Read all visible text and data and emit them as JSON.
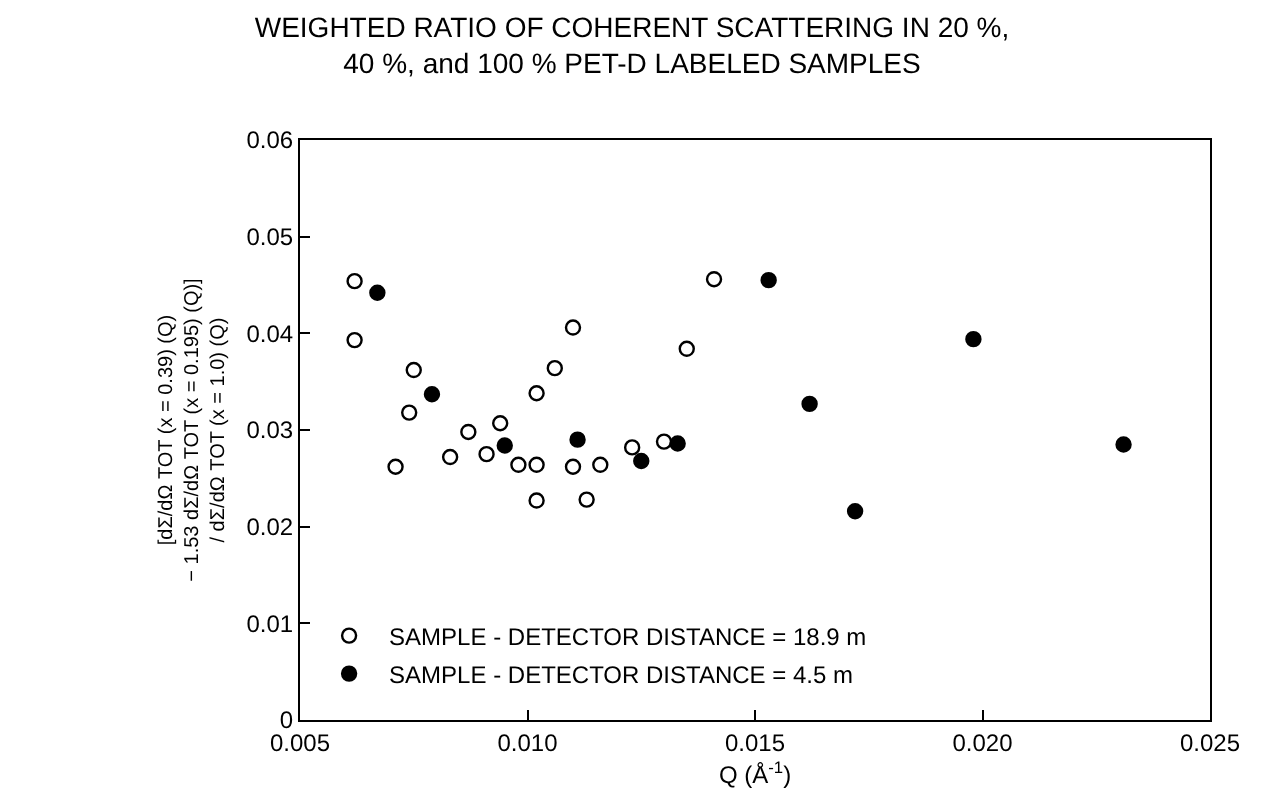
{
  "chart_data": {
    "type": "scatter",
    "title": "WEIGHTED RATIO OF COHERENT SCATTERING IN 20 %,\n40 %, and 100 % PET-D LABELED SAMPLES",
    "xlabel": "Q (Å$^{-1}$)",
    "ylabel": "[dΣ/dΩ TOT (x = 0.39) (Q)\n− 1.53 dΣ/dΩ TOT (x = 0.195) (Q)]\n/ dΣ/dΩ TOT (x = 1.0) (Q)",
    "series": [
      {
        "name": "SAMPLE - DETECTOR DISTANCE = 18.9 m",
        "color": "#000000",
        "marker": "circle-open",
        "x": [
          0.0062,
          0.0062,
          0.0071,
          0.0074,
          0.0075,
          0.0083,
          0.0087,
          0.0091,
          0.0094,
          0.0098,
          0.0102,
          0.0102,
          0.0102,
          0.0106,
          0.011,
          0.011,
          0.0113,
          0.0116,
          0.0123,
          0.013,
          0.0135,
          0.0141
        ],
        "values": [
          0.0454,
          0.0393,
          0.0262,
          0.0318,
          0.0362,
          0.0272,
          0.0298,
          0.0275,
          0.0307,
          0.0264,
          0.0264,
          0.0227,
          0.0338,
          0.0364,
          0.0406,
          0.0262,
          0.0228,
          0.0264,
          0.0282,
          0.0288,
          0.0384,
          0.0456
        ]
      },
      {
        "name": "SAMPLE - DETECTOR DISTANCE = 4.5 m",
        "color": "#000000",
        "marker": "circle",
        "x": [
          0.0067,
          0.0079,
          0.0095,
          0.0111,
          0.0125,
          0.0133,
          0.0153,
          0.0162,
          0.0172,
          0.0198,
          0.0231
        ],
        "values": [
          0.0442,
          0.0337,
          0.0284,
          0.029,
          0.0268,
          0.0286,
          0.0455,
          0.0327,
          0.0216,
          0.0394,
          0.0285
        ]
      }
    ],
    "xlim": [
      0.005,
      0.025
    ],
    "xticks": [
      0.005,
      {
        "value": 0.01,
        "label": "0.010"
      },
      0.015,
      {
        "value": 0.02,
        "label": "0.020"
      },
      0.025
    ],
    "ylim": [
      0,
      0.06
    ],
    "yticks": [
      0,
      0.01,
      0.02,
      0.03,
      0.04,
      0.05,
      0.06
    ],
    "legend": "bottom left"
  }
}
